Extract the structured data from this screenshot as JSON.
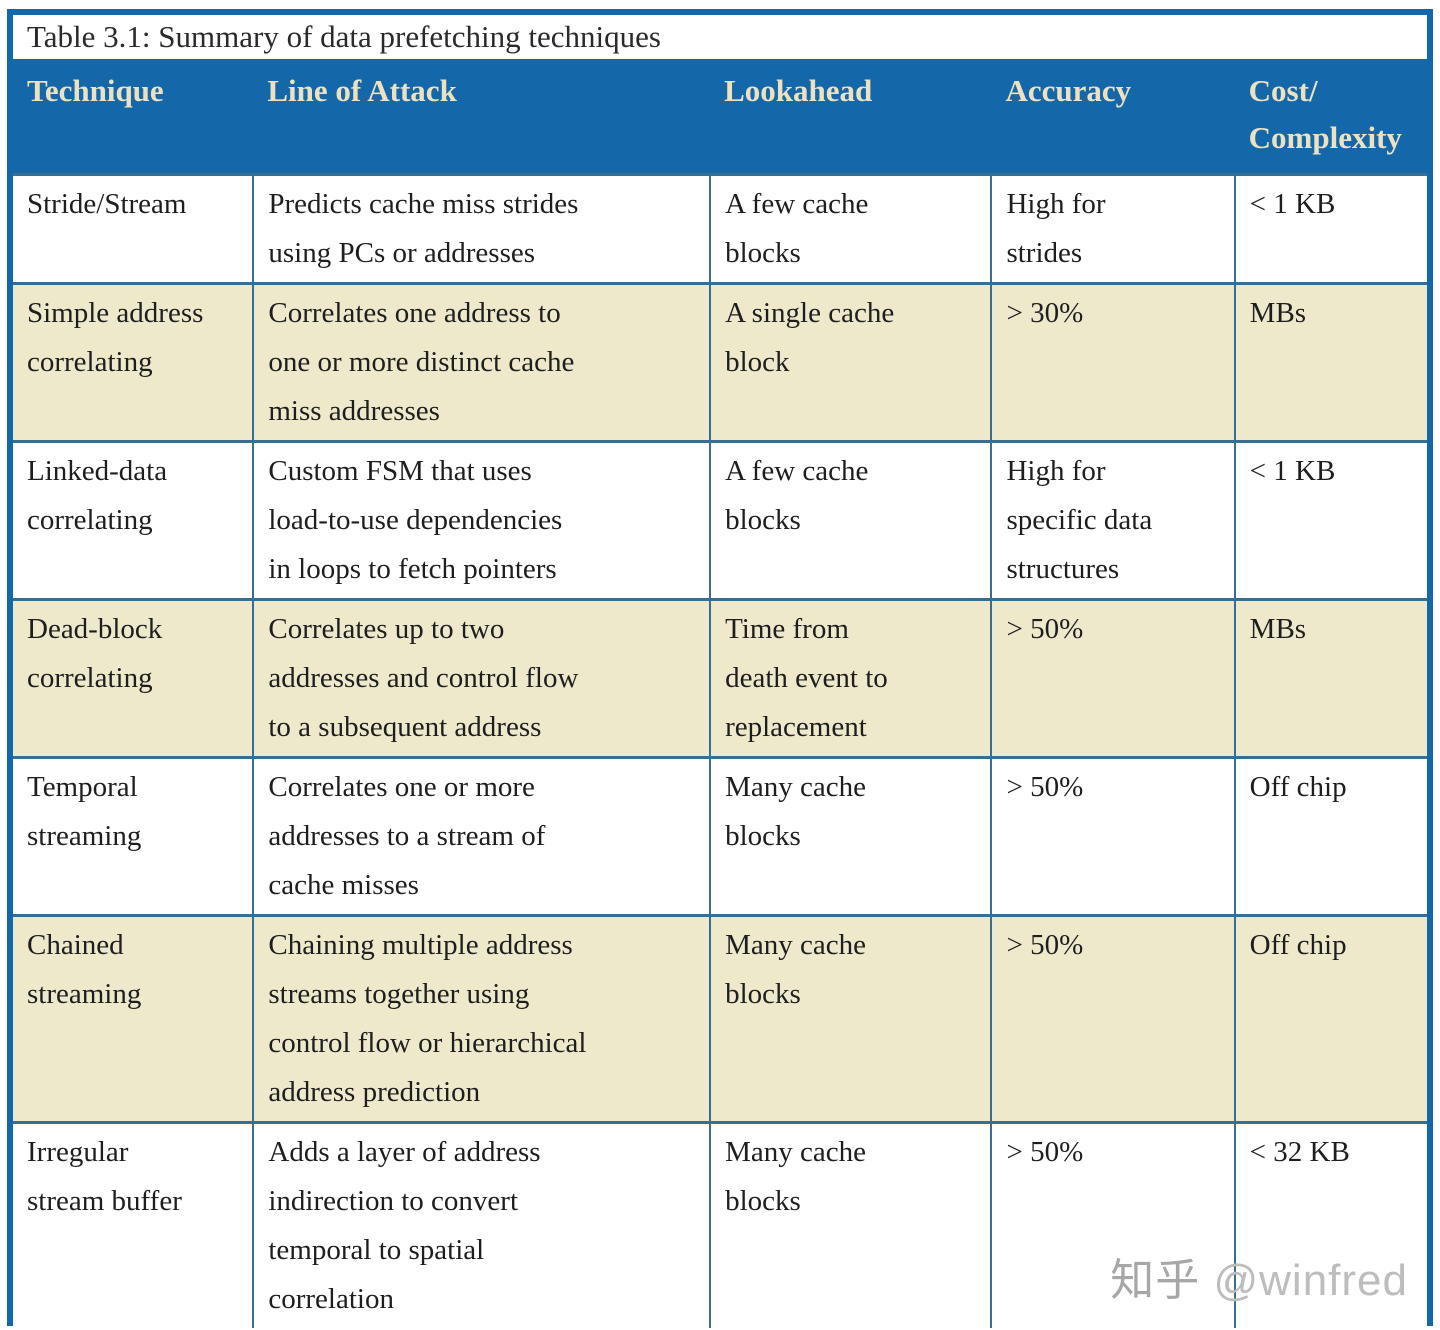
{
  "caption": "Table 3.1: Summary of data prefetching techniques",
  "table": {
    "columns": [
      "Technique",
      "Line of Attack",
      "Lookahead",
      "Accuracy",
      "Cost/\nComplexity"
    ],
    "rows": [
      {
        "cells": [
          "Stride/Stream",
          "Predicts cache miss strides\nusing PCs or addresses",
          "A few cache\nblocks",
          "High for\nstrides",
          "< 1 KB"
        ]
      },
      {
        "cells": [
          "Simple address\ncorrelating",
          "Correlates one address to\none or more distinct cache\nmiss addresses",
          "A single cache\nblock",
          "> 30%",
          "MBs"
        ]
      },
      {
        "cells": [
          "Linked-data\ncorrelating",
          "Custom FSM that uses\nload-to-use dependencies\nin loops to fetch pointers",
          "A few cache\nblocks",
          "High for\nspecific data\nstructures",
          "< 1 KB"
        ]
      },
      {
        "cells": [
          "Dead-block\ncorrelating",
          "Correlates up to two\naddresses and control flow\nto a subsequent address",
          "Time from\ndeath event to\nreplacement",
          "> 50%",
          "MBs"
        ]
      },
      {
        "cells": [
          "Temporal\nstreaming",
          "Correlates one or more\naddresses to a stream of\ncache misses",
          "Many cache\nblocks",
          "> 50%",
          "Off chip"
        ]
      },
      {
        "cells": [
          "Chained\nstreaming",
          "Chaining multiple address\nstreams together using\ncontrol flow or hierarchical\naddress prediction",
          "Many cache\nblocks",
          "> 50%",
          "Off chip"
        ]
      },
      {
        "cells": [
          "Irregular\nstream buffer",
          "Adds a layer of address\nindirection to convert\ntemporal to spatial\ncorrelation",
          "Many cache\nblocks",
          "> 50%",
          "< 32 KB"
        ]
      }
    ]
  },
  "watermark": {
    "site": "知乎",
    "user": "@winfred"
  },
  "colors": {
    "header_blue": "#1467a8",
    "row_cream": "#efe9cc",
    "row_white": "#ffffff",
    "grid_line": "#376f92",
    "header_text": "#ece2c1",
    "body_text": "#1e1e1e",
    "watermark_gray": "#b0b0b0"
  }
}
